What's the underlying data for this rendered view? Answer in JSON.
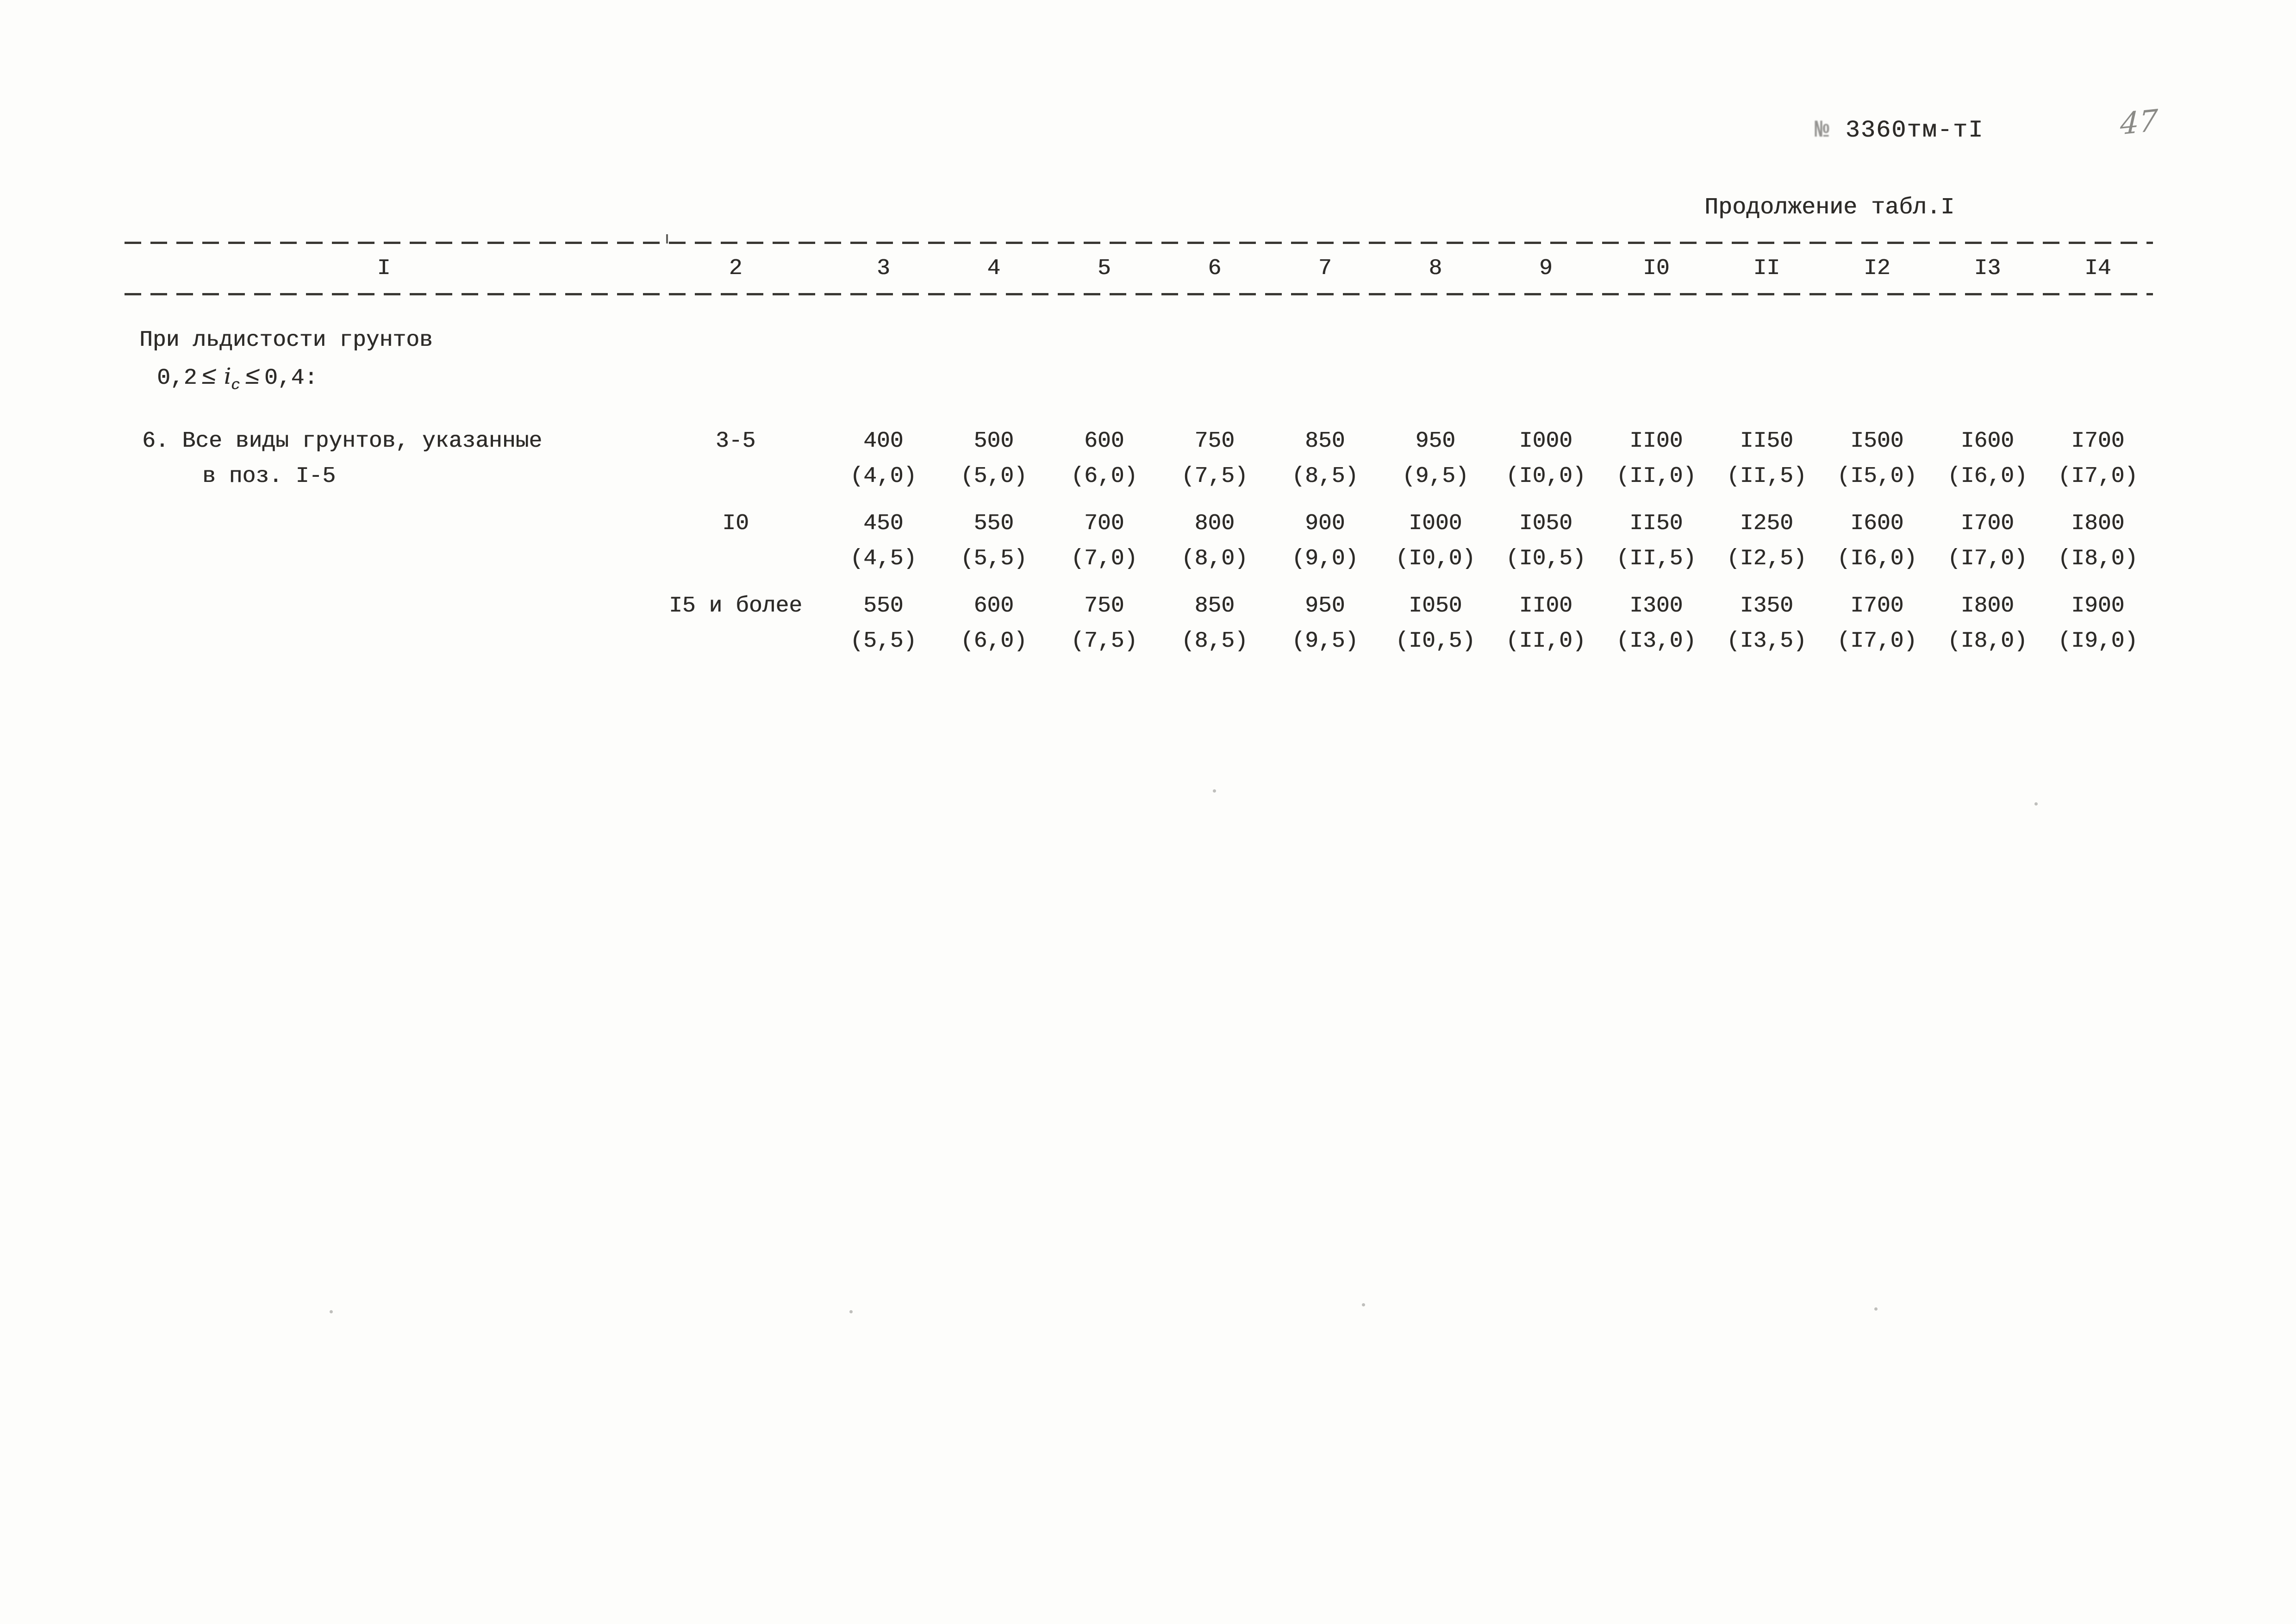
{
  "header": {
    "doc_number_prefix": "№",
    "doc_number": "3360тм-тI",
    "page_number": "47",
    "continuation": "Продолжение табл.I"
  },
  "table": {
    "columns": [
      "I",
      "2",
      "3",
      "4",
      "5",
      "6",
      "7",
      "8",
      "9",
      "I0",
      "II",
      "I2",
      "I3",
      "I4"
    ],
    "note": {
      "line1": "При льдистости грунтов",
      "formula": {
        "pre": "0,2",
        "leq1": "≤",
        "var": "i",
        "sub": "c",
        "leq2": "≤",
        "post": "0,4:"
      }
    },
    "item": {
      "label_line1": "6. Все виды грунтов, указанные",
      "label_line2": "в поз. I-5"
    },
    "rows": [
      {
        "depth": "3-5",
        "cells": [
          {
            "v": "400",
            "p": "(4,0)"
          },
          {
            "v": "500",
            "p": "(5,0)"
          },
          {
            "v": "600",
            "p": "(6,0)"
          },
          {
            "v": "750",
            "p": "(7,5)"
          },
          {
            "v": "850",
            "p": "(8,5)"
          },
          {
            "v": "950",
            "p": "(9,5)"
          },
          {
            "v": "I000",
            "p": "(I0,0)"
          },
          {
            "v": "II00",
            "p": "(II,0)"
          },
          {
            "v": "II50",
            "p": "(II,5)"
          },
          {
            "v": "I500",
            "p": "(I5,0)"
          },
          {
            "v": "I600",
            "p": "(I6,0)"
          },
          {
            "v": "I700",
            "p": "(I7,0)"
          }
        ]
      },
      {
        "depth": "I0",
        "cells": [
          {
            "v": "450",
            "p": "(4,5)"
          },
          {
            "v": "550",
            "p": "(5,5)"
          },
          {
            "v": "700",
            "p": "(7,0)"
          },
          {
            "v": "800",
            "p": "(8,0)"
          },
          {
            "v": "900",
            "p": "(9,0)"
          },
          {
            "v": "I000",
            "p": "(I0,0)"
          },
          {
            "v": "I050",
            "p": "(I0,5)"
          },
          {
            "v": "II50",
            "p": "(II,5)"
          },
          {
            "v": "I250",
            "p": "(I2,5)"
          },
          {
            "v": "I600",
            "p": "(I6,0)"
          },
          {
            "v": "I700",
            "p": "(I7,0)"
          },
          {
            "v": "I800",
            "p": "(I8,0)"
          }
        ]
      },
      {
        "depth": "I5 и более",
        "cells": [
          {
            "v": "550",
            "p": "(5,5)"
          },
          {
            "v": "600",
            "p": "(6,0)"
          },
          {
            "v": "750",
            "p": "(7,5)"
          },
          {
            "v": "850",
            "p": "(8,5)"
          },
          {
            "v": "950",
            "p": "(9,5)"
          },
          {
            "v": "I050",
            "p": "(I0,5)"
          },
          {
            "v": "II00",
            "p": "(II,0)"
          },
          {
            "v": "I300",
            "p": "(I3,0)"
          },
          {
            "v": "I350",
            "p": "(I3,5)"
          },
          {
            "v": "I700",
            "p": "(I7,0)"
          },
          {
            "v": "I800",
            "p": "(I8,0)"
          },
          {
            "v": "I900",
            "p": "(I9,0)"
          }
        ]
      }
    ]
  }
}
